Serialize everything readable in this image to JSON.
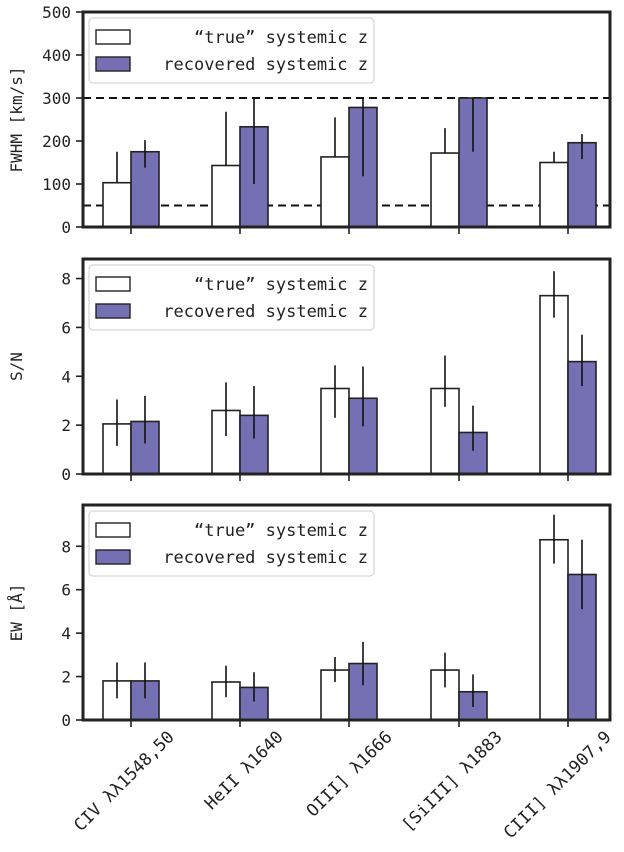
{
  "chart_data": [
    {
      "type": "bar",
      "ylabel": "FWHM [km/s]",
      "ylim": [
        0,
        500
      ],
      "yticks": [
        0,
        100,
        200,
        300,
        400,
        500
      ],
      "categories": [
        "CIV λλ1548,50",
        "HeII λ1640",
        "OIII] λ1666",
        "[SiIII] λ1883",
        "CIII] λλ1907,9"
      ],
      "hlines": [
        50,
        300
      ],
      "legend": "top-left",
      "series": [
        {
          "name": "“true” systemic z",
          "values": [
            103,
            143,
            163,
            172,
            150
          ],
          "err_low": [
            103,
            143,
            163,
            172,
            150
          ],
          "err_high": [
            175,
            268,
            255,
            230,
            175
          ],
          "color": "#ffffff"
        },
        {
          "name": "recovered systemic z",
          "values": [
            175,
            233,
            278,
            300,
            196
          ],
          "err_low": [
            138,
            100,
            118,
            175,
            158
          ],
          "err_high": [
            202,
            300,
            300,
            300,
            216
          ],
          "color": "#7570b3"
        }
      ]
    },
    {
      "type": "bar",
      "ylabel": "S/N",
      "ylim": [
        0,
        8.8
      ],
      "yticks": [
        0,
        2,
        4,
        6,
        8
      ],
      "categories": [
        "CIV λλ1548,50",
        "HeII λ1640",
        "OIII] λ1666",
        "[SiIII] λ1883",
        "CIII] λλ1907,9"
      ],
      "legend": "top-left",
      "series": [
        {
          "name": "“true” systemic z",
          "values": [
            2.05,
            2.6,
            3.5,
            3.5,
            7.3
          ],
          "err_low": [
            1.15,
            1.55,
            2.3,
            2.75,
            6.4
          ],
          "err_high": [
            3.05,
            3.75,
            4.45,
            4.85,
            8.3
          ],
          "color": "#ffffff"
        },
        {
          "name": "recovered systemic z",
          "values": [
            2.15,
            2.4,
            3.1,
            1.7,
            4.6
          ],
          "err_low": [
            1.25,
            1.45,
            1.95,
            0.95,
            3.6
          ],
          "err_high": [
            3.2,
            3.6,
            4.4,
            2.8,
            5.7
          ],
          "color": "#7570b3"
        }
      ]
    },
    {
      "type": "bar",
      "ylabel": "EW [Å]",
      "ylim": [
        0,
        9.9
      ],
      "yticks": [
        0,
        2,
        4,
        6,
        8
      ],
      "categories": [
        "CIV λλ1548,50",
        "HeII λ1640",
        "OIII] λ1666",
        "[SiIII] λ1883",
        "CIII] λλ1907,9"
      ],
      "legend": "top-left",
      "series": [
        {
          "name": "“true” systemic z",
          "values": [
            1.8,
            1.75,
            2.3,
            2.3,
            8.3
          ],
          "err_low": [
            1.0,
            1.05,
            1.75,
            1.5,
            7.2
          ],
          "err_high": [
            2.65,
            2.5,
            2.9,
            3.1,
            9.45
          ],
          "color": "#ffffff"
        },
        {
          "name": "recovered systemic z",
          "values": [
            1.8,
            1.5,
            2.6,
            1.3,
            6.7
          ],
          "err_low": [
            1.0,
            0.85,
            1.6,
            0.6,
            5.1
          ],
          "err_high": [
            2.65,
            2.2,
            3.6,
            2.1,
            8.3
          ],
          "color": "#7570b3"
        }
      ]
    }
  ]
}
